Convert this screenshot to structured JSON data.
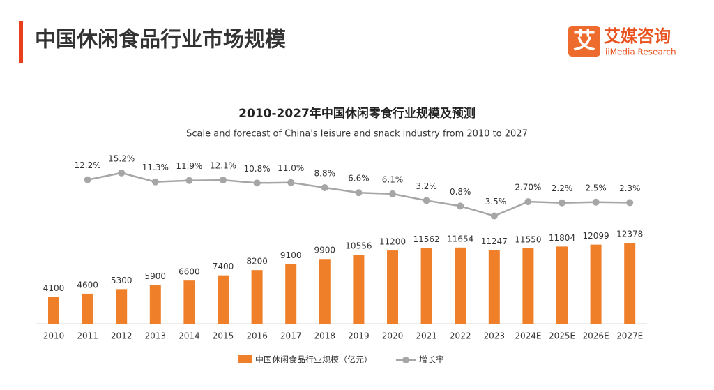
{
  "header": {
    "title": "中国休闲食品行业市场规模",
    "logo": {
      "mark": "艾",
      "name": "艾媒咨询",
      "sub": "iiMedia Research"
    }
  },
  "chart_data": {
    "type": "bar",
    "title": "2010-2027年中国休闲零食行业规模及预测",
    "subtitle": "Scale and forecast of China's leisure and snack industry from 2010 to 2027",
    "categories": [
      "2010",
      "2011",
      "2012",
      "2013",
      "2014",
      "2015",
      "2016",
      "2017",
      "2018",
      "2019",
      "2020",
      "2021",
      "2022",
      "2023",
      "2024E",
      "2025E",
      "2026E",
      "2027E"
    ],
    "series": [
      {
        "name": "中国休闲食品行业规模（亿元）",
        "color": "#f07f2a",
        "values": [
          4100,
          4600,
          5300,
          5900,
          6600,
          7400,
          8200,
          9100,
          9900,
          10556,
          11200,
          11562,
          11654,
          11247,
          11550,
          11804,
          12099,
          12378
        ]
      },
      {
        "name": "增长率",
        "type": "line",
        "color": "#a6a6a6",
        "values": [
          null,
          12.2,
          15.2,
          11.3,
          11.9,
          12.1,
          10.8,
          11.0,
          8.8,
          6.6,
          6.1,
          3.2,
          0.8,
          -3.5,
          2.7,
          2.2,
          2.5,
          2.3
        ],
        "value_labels": [
          null,
          "12.2%",
          "15.2%",
          "11.3%",
          "11.9%",
          "12.1%",
          "10.8%",
          "11.0%",
          "8.8%",
          "6.6%",
          "6.1%",
          "3.2%",
          "0.8%",
          "-3.5%",
          "2.70%",
          "2.2%",
          "2.5%",
          "2.3%"
        ]
      }
    ]
  }
}
